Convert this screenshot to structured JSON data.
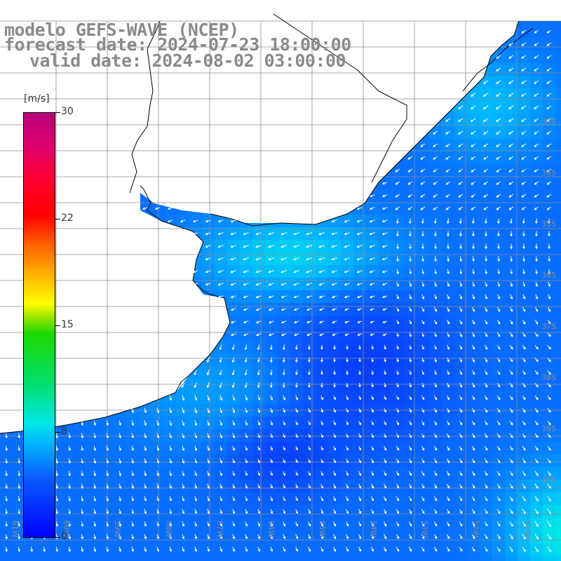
{
  "header": {
    "line1": "modelo GEFS-WAVE (NCEP)",
    "line2": "forecast date: 2024-07-23 18:00:00",
    "line3": "valid date: 2024-08-02 03:00:00"
  },
  "colorbar": {
    "unit": "[m/s]",
    "min": 0,
    "max": 30,
    "tick_labels": [
      "30",
      "22",
      "15",
      "8",
      "0"
    ],
    "tick_values": [
      30,
      22,
      15,
      8,
      0
    ],
    "colors": [
      "#0000ff",
      "#00b4ff",
      "#00e6e6",
      "#1cd800",
      "#ffff00",
      "#ff6000",
      "#ff0000",
      "#b80078"
    ]
  },
  "map": {
    "lat_labels": [
      "33S",
      "34S",
      "35S",
      "36S",
      "37S",
      "38S",
      "39S",
      "40S"
    ],
    "lon_labels": [
      "61W",
      "60W",
      "59W",
      "58W",
      "57W",
      "56W",
      "55W",
      "54W",
      "53W",
      "52W",
      "51W"
    ],
    "field": "wind speed and direction",
    "colors": {
      "land": "#ffffff",
      "coast": "#000000",
      "grid": "#8c8c8c",
      "arrow": "#ffffff"
    }
  }
}
